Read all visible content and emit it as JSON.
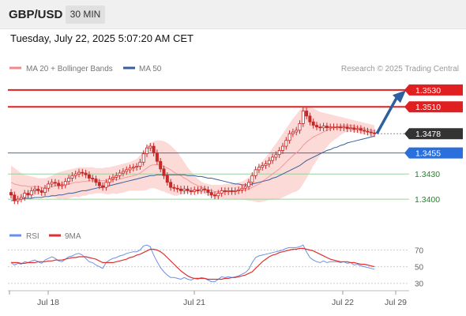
{
  "header": {
    "symbol": "GBP/USD",
    "timeframe": "30 MIN"
  },
  "datetime": "Tuesday, July 22, 2025 5:07:20 AM CET",
  "legend": {
    "bb_label": "MA 20 + Bollinger Bands",
    "ma50_label": "MA 50",
    "copyright": "Research © 2025 Trading Central"
  },
  "colors": {
    "resistance": "#e02020",
    "support_blue": "#2a6fdc",
    "support_green": "#4caf50",
    "candle": "#c62828",
    "bb_fill": "#fbd3d0",
    "ma20": "#ef9a9a",
    "ma50": "#3a5e9c",
    "arrow": "#2e5fa0",
    "rsi": "#6b8fe8",
    "rsi_ma": "#e03030"
  },
  "chart_data": [
    {
      "type": "candlestick",
      "title": "GBP/USD 30 MIN",
      "x_ticks": [
        "Jul 18",
        "Jul 21",
        "Jul 22",
        "Jul 29"
      ],
      "ylim": [
        1.3385,
        1.3545
      ],
      "levels": [
        {
          "value": 1.353,
          "label": "1.3530",
          "kind": "resistance"
        },
        {
          "value": 1.351,
          "label": "1.3510",
          "kind": "resistance"
        },
        {
          "value": 1.3478,
          "label": "1.3478",
          "kind": "last"
        },
        {
          "value": 1.3455,
          "label": "1.3455",
          "kind": "pivot"
        },
        {
          "value": 1.343,
          "label": "1.3430",
          "kind": "support"
        },
        {
          "value": 1.34,
          "label": "1.3400",
          "kind": "support"
        }
      ],
      "closes": [
        1.3405,
        1.3398,
        1.34,
        1.3402,
        1.3407,
        1.3405,
        1.341,
        1.3412,
        1.341,
        1.3408,
        1.3413,
        1.3418,
        1.342,
        1.3419,
        1.3416,
        1.3417,
        1.3421,
        1.3425,
        1.3428,
        1.343,
        1.3432,
        1.3431,
        1.3429,
        1.3425,
        1.3424,
        1.342,
        1.3416,
        1.3414,
        1.342,
        1.3424,
        1.3426,
        1.3428,
        1.3431,
        1.3433,
        1.3435,
        1.3437,
        1.3438,
        1.3439,
        1.3444,
        1.3454,
        1.3461,
        1.3463,
        1.3455,
        1.3445,
        1.3436,
        1.3428,
        1.342,
        1.3414,
        1.3413,
        1.3412,
        1.341,
        1.3412,
        1.341,
        1.3409,
        1.3411,
        1.341,
        1.3412,
        1.3411,
        1.3408,
        1.3405,
        1.3404,
        1.3407,
        1.341,
        1.3409,
        1.341,
        1.3409,
        1.341,
        1.3411,
        1.3413,
        1.3415,
        1.342,
        1.3428,
        1.3435,
        1.3438,
        1.344,
        1.3442,
        1.3446,
        1.345,
        1.3453,
        1.3458,
        1.3463,
        1.347,
        1.3478,
        1.348,
        1.3482,
        1.349,
        1.3505,
        1.3499,
        1.3492,
        1.3488,
        1.3486,
        1.3485,
        1.3487,
        1.3485,
        1.3486,
        1.3486,
        1.3486,
        1.3485,
        1.3486,
        1.3484,
        1.3485,
        1.3483,
        1.3484,
        1.3482,
        1.3481,
        1.348,
        1.3479,
        1.3478
      ],
      "ma20": [
        1.342,
        1.3418,
        1.3417,
        1.3416,
        1.3416,
        1.3415,
        1.3415,
        1.3415,
        1.3415,
        1.3414,
        1.3414,
        1.3415,
        1.3415,
        1.3416,
        1.3416,
        1.3417,
        1.3417,
        1.3418,
        1.3419,
        1.342,
        1.342,
        1.3421,
        1.3421,
        1.3422,
        1.3422,
        1.3422,
        1.3422,
        1.3422,
        1.3422,
        1.3422,
        1.3423,
        1.3423,
        1.3424,
        1.3425,
        1.3426,
        1.3427,
        1.3428,
        1.3429,
        1.3431,
        1.3434,
        1.3437,
        1.344,
        1.3441,
        1.3441,
        1.344,
        1.3439,
        1.3437,
        1.3435,
        1.3432,
        1.343,
        1.3428,
        1.3425,
        1.3423,
        1.342,
        1.3418,
        1.3416,
        1.3414,
        1.3413,
        1.3411,
        1.341,
        1.3409,
        1.3409,
        1.3409,
        1.3409,
        1.3409,
        1.3409,
        1.3409,
        1.341,
        1.341,
        1.3411,
        1.3412,
        1.3414,
        1.3416,
        1.3418,
        1.3421,
        1.3424,
        1.3427,
        1.343,
        1.3433,
        1.3436,
        1.344,
        1.3444,
        1.3448,
        1.3452,
        1.3455,
        1.3459,
        1.3464,
        1.3468,
        1.3471,
        1.3474,
        1.3476,
        1.3478,
        1.348,
        1.3482,
        1.3484,
        1.3485,
        1.3486,
        1.3487,
        1.3488,
        1.3488,
        1.3488,
        1.3487,
        1.3486,
        1.3485,
        1.3484,
        1.3483,
        1.3482,
        1.3481
      ],
      "bb_upper": [
        1.344,
        1.3437,
        1.3434,
        1.3431,
        1.3429,
        1.3428,
        1.3427,
        1.3426,
        1.3425,
        1.3425,
        1.3425,
        1.3426,
        1.3428,
        1.343,
        1.3432,
        1.3433,
        1.3434,
        1.3435,
        1.3436,
        1.3437,
        1.3438,
        1.3438,
        1.3438,
        1.3438,
        1.3438,
        1.3437,
        1.3437,
        1.3437,
        1.3438,
        1.3438,
        1.3439,
        1.344,
        1.3441,
        1.3442,
        1.3443,
        1.3444,
        1.3446,
        1.3448,
        1.3452,
        1.3458,
        1.3463,
        1.3467,
        1.3469,
        1.347,
        1.347,
        1.3469,
        1.3467,
        1.3464,
        1.346,
        1.3456,
        1.345,
        1.3444,
        1.3438,
        1.3433,
        1.3428,
        1.3424,
        1.3421,
        1.3419,
        1.3418,
        1.3417,
        1.3417,
        1.3417,
        1.3417,
        1.3418,
        1.3418,
        1.3418,
        1.3419,
        1.342,
        1.3421,
        1.3423,
        1.3426,
        1.343,
        1.3435,
        1.344,
        1.3445,
        1.345,
        1.3455,
        1.3461,
        1.3466,
        1.3472,
        1.3478,
        1.3484,
        1.349,
        1.3496,
        1.3501,
        1.3506,
        1.351,
        1.3511,
        1.351,
        1.3508,
        1.3506,
        1.3504,
        1.3503,
        1.3502,
        1.3501,
        1.35,
        1.3499,
        1.3498,
        1.3497,
        1.3496,
        1.3495,
        1.3494,
        1.3493,
        1.3492,
        1.3491,
        1.349,
        1.3489,
        1.3488
      ],
      "bb_lower": [
        1.34,
        1.3399,
        1.34,
        1.3401,
        1.3403,
        1.3402,
        1.3403,
        1.3404,
        1.3405,
        1.3403,
        1.3403,
        1.3404,
        1.3402,
        1.3402,
        1.34,
        1.3401,
        1.34,
        1.3401,
        1.3402,
        1.3403,
        1.3402,
        1.3404,
        1.3404,
        1.3406,
        1.3406,
        1.3407,
        1.3407,
        1.3407,
        1.3406,
        1.3406,
        1.3407,
        1.3406,
        1.3407,
        1.3408,
        1.3409,
        1.341,
        1.341,
        1.341,
        1.341,
        1.341,
        1.3411,
        1.3413,
        1.3413,
        1.3412,
        1.341,
        1.3409,
        1.3407,
        1.3406,
        1.3404,
        1.3404,
        1.3406,
        1.3406,
        1.3408,
        1.3407,
        1.3408,
        1.3408,
        1.3407,
        1.3407,
        1.3404,
        1.3403,
        1.3401,
        1.3401,
        1.3401,
        1.34,
        1.34,
        1.34,
        1.3399,
        1.34,
        1.3399,
        1.3399,
        1.3398,
        1.3398,
        1.3397,
        1.3396,
        1.3397,
        1.3398,
        1.3399,
        1.3399,
        1.34,
        1.34,
        1.3402,
        1.3404,
        1.3406,
        1.3408,
        1.3409,
        1.3412,
        1.3418,
        1.3425,
        1.3432,
        1.344,
        1.3446,
        1.3452,
        1.3457,
        1.3462,
        1.3467,
        1.347,
        1.3473,
        1.3476,
        1.3479,
        1.348,
        1.3481,
        1.348,
        1.3479,
        1.3478,
        1.3477,
        1.3476,
        1.3475,
        1.3474
      ],
      "ma50": [
        1.3398,
        1.3399,
        1.34,
        1.34,
        1.3401,
        1.3401,
        1.3401,
        1.3402,
        1.3402,
        1.3402,
        1.3403,
        1.3403,
        1.3404,
        1.3404,
        1.3405,
        1.3405,
        1.3406,
        1.3407,
        1.3407,
        1.3408,
        1.3409,
        1.341,
        1.341,
        1.3411,
        1.3412,
        1.3413,
        1.3414,
        1.3414,
        1.3415,
        1.3416,
        1.3417,
        1.3418,
        1.3419,
        1.342,
        1.3421,
        1.3422,
        1.3423,
        1.3424,
        1.3425,
        1.3426,
        1.3427,
        1.3428,
        1.3428,
        1.3429,
        1.3429,
        1.3429,
        1.3429,
        1.3429,
        1.3429,
        1.3429,
        1.3429,
        1.3429,
        1.3428,
        1.3428,
        1.3428,
        1.3427,
        1.3427,
        1.3426,
        1.3425,
        1.3425,
        1.3424,
        1.3423,
        1.3422,
        1.3421,
        1.342,
        1.3419,
        1.3418,
        1.3418,
        1.3417,
        1.3417,
        1.3417,
        1.3418,
        1.3419,
        1.342,
        1.3421,
        1.3422,
        1.3423,
        1.3425,
        1.3426,
        1.3428,
        1.343,
        1.3432,
        1.3434,
        1.3436,
        1.3438,
        1.344,
        1.3443,
        1.3446,
        1.3448,
        1.345,
        1.3452,
        1.3454,
        1.3456,
        1.3458,
        1.3459,
        1.3461,
        1.3462,
        1.3464,
        1.3465,
        1.3467,
        1.3468,
        1.3469,
        1.347,
        1.3471,
        1.3472,
        1.3473,
        1.3474,
        1.3475
      ]
    },
    {
      "type": "line",
      "title": "RSI",
      "series": [
        {
          "name": "RSI",
          "values": [
            55,
            52,
            54,
            53,
            56,
            55,
            57,
            58,
            56,
            54,
            58,
            60,
            62,
            60,
            57,
            56,
            59,
            62,
            63,
            65,
            66,
            64,
            60,
            56,
            55,
            52,
            50,
            48,
            55,
            58,
            60,
            61,
            63,
            64,
            66,
            67,
            68,
            68,
            70,
            75,
            76,
            74,
            64,
            56,
            49,
            44,
            40,
            37,
            37,
            36,
            35,
            37,
            35,
            34,
            36,
            35,
            37,
            36,
            34,
            32,
            32,
            35,
            38,
            37,
            38,
            37,
            38,
            39,
            41,
            43,
            47,
            55,
            61,
            63,
            64,
            65,
            66,
            67,
            68,
            69,
            70,
            72,
            73,
            73,
            73,
            74,
            76,
            68,
            61,
            58,
            56,
            55,
            57,
            55,
            56,
            56,
            56,
            55,
            56,
            54,
            55,
            52,
            53,
            51,
            50,
            49,
            48,
            47
          ]
        },
        {
          "name": "9MA",
          "values": [
            55,
            55,
            55,
            54,
            54,
            55,
            55,
            55,
            56,
            56,
            56,
            57,
            57,
            58,
            58,
            58,
            59,
            60,
            61,
            61,
            62,
            62,
            62,
            61,
            60,
            59,
            57,
            55,
            55,
            55,
            55,
            56,
            57,
            58,
            59,
            61,
            62,
            64,
            65,
            67,
            69,
            71,
            71,
            70,
            68,
            65,
            61,
            57,
            53,
            49,
            45,
            42,
            39,
            37,
            36,
            36,
            36,
            36,
            35,
            35,
            35,
            35,
            35,
            36,
            36,
            37,
            37,
            38,
            39,
            40,
            42,
            44,
            48,
            52,
            56,
            59,
            62,
            64,
            65,
            67,
            68,
            69,
            70,
            71,
            71,
            72,
            72,
            71,
            70,
            69,
            67,
            65,
            63,
            61,
            59,
            58,
            57,
            56,
            56,
            56,
            55,
            55,
            54,
            53,
            53,
            52,
            51,
            50
          ]
        }
      ],
      "yticks": [
        70,
        50,
        30
      ],
      "ylim": [
        25,
        80
      ]
    }
  ],
  "rsi_legend": {
    "rsi_label": "RSI",
    "ma_label": "9MA"
  }
}
